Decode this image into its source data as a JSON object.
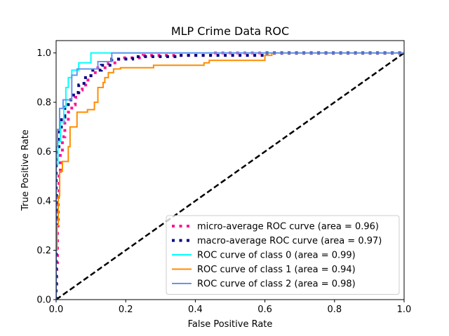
{
  "chart_data": {
    "type": "line",
    "title": "MLP Crime Data ROC",
    "xlabel": "False Positive Rate",
    "ylabel": "True Positive Rate",
    "xlim": [
      0.0,
      1.0
    ],
    "ylim": [
      0.0,
      1.05
    ],
    "xticks": [
      0.0,
      0.2,
      0.4,
      0.6,
      0.8,
      1.0
    ],
    "yticks": [
      0.0,
      0.2,
      0.4,
      0.6,
      0.8,
      1.0
    ],
    "xtick_labels": [
      "0.0",
      "0.2",
      "0.4",
      "0.6",
      "0.8",
      "1.0"
    ],
    "ytick_labels": [
      "0.0",
      "0.2",
      "0.4",
      "0.6",
      "0.8",
      "1.0"
    ],
    "grid": false,
    "legend_position": "bottom-right",
    "series": [
      {
        "name": "micro-average ROC curve (area = 0.96)",
        "color": "#ff1493",
        "style": "dotted",
        "x": [
          0.0,
          0.0,
          0.002,
          0.002,
          0.004,
          0.004,
          0.006,
          0.006,
          0.008,
          0.008,
          0.012,
          0.012,
          0.018,
          0.018,
          0.025,
          0.025,
          0.035,
          0.035,
          0.045,
          0.045,
          0.055,
          0.055,
          0.065,
          0.065,
          0.075,
          0.075,
          0.085,
          0.085,
          0.1,
          0.1,
          0.12,
          0.12,
          0.15,
          0.15,
          0.18,
          0.18,
          0.25,
          0.25,
          0.45,
          0.45,
          1.0
        ],
        "y": [
          0.0,
          0.05,
          0.05,
          0.15,
          0.15,
          0.3,
          0.3,
          0.42,
          0.42,
          0.52,
          0.52,
          0.6,
          0.6,
          0.66,
          0.66,
          0.72,
          0.72,
          0.76,
          0.76,
          0.79,
          0.79,
          0.82,
          0.82,
          0.85,
          0.85,
          0.87,
          0.87,
          0.89,
          0.89,
          0.92,
          0.92,
          0.94,
          0.94,
          0.96,
          0.96,
          0.98,
          0.98,
          0.99,
          0.99,
          1.0,
          1.0
        ]
      },
      {
        "name": "macro-average ROC curve (area = 0.97)",
        "color": "#000080",
        "style": "dotted",
        "x": [
          0.0,
          0.0,
          0.003,
          0.003,
          0.008,
          0.008,
          0.015,
          0.015,
          0.025,
          0.025,
          0.035,
          0.035,
          0.05,
          0.05,
          0.065,
          0.065,
          0.08,
          0.08,
          0.1,
          0.1,
          0.13,
          0.13,
          0.16,
          0.16,
          0.22,
          0.22,
          0.35,
          0.35,
          0.6,
          0.6,
          1.0
        ],
        "y": [
          0.0,
          0.55,
          0.55,
          0.62,
          0.62,
          0.69,
          0.69,
          0.74,
          0.74,
          0.78,
          0.78,
          0.81,
          0.81,
          0.84,
          0.84,
          0.87,
          0.87,
          0.9,
          0.9,
          0.93,
          0.93,
          0.95,
          0.95,
          0.975,
          0.975,
          0.985,
          0.985,
          0.99,
          0.99,
          1.0,
          1.0
        ]
      },
      {
        "name": "ROC curve of class 0 (area = 0.99)",
        "color": "#00ffff",
        "style": "solid",
        "x": [
          0.0,
          0.0,
          0.005,
          0.005,
          0.012,
          0.012,
          0.022,
          0.022,
          0.028,
          0.028,
          0.035,
          0.035,
          0.045,
          0.045,
          0.065,
          0.065,
          0.1,
          0.1,
          1.0
        ],
        "y": [
          0.0,
          0.55,
          0.55,
          0.64,
          0.64,
          0.72,
          0.72,
          0.78,
          0.78,
          0.86,
          0.86,
          0.9,
          0.9,
          0.93,
          0.93,
          0.96,
          0.96,
          1.0,
          1.0
        ]
      },
      {
        "name": "ROC curve of class 1 (area = 0.94)",
        "color": "#ff8c00",
        "style": "solid",
        "x": [
          0.0,
          0.0,
          0.003,
          0.003,
          0.006,
          0.006,
          0.01,
          0.01,
          0.018,
          0.018,
          0.035,
          0.035,
          0.04,
          0.04,
          0.06,
          0.06,
          0.09,
          0.09,
          0.11,
          0.11,
          0.12,
          0.12,
          0.135,
          0.135,
          0.14,
          0.14,
          0.15,
          0.15,
          0.165,
          0.165,
          0.185,
          0.185,
          0.28,
          0.28,
          0.425,
          0.425,
          0.44,
          0.44,
          0.6,
          0.6,
          0.62,
          0.62,
          1.0
        ],
        "y": [
          0.0,
          0.2,
          0.2,
          0.3,
          0.3,
          0.42,
          0.42,
          0.52,
          0.52,
          0.56,
          0.56,
          0.62,
          0.62,
          0.7,
          0.7,
          0.76,
          0.76,
          0.77,
          0.77,
          0.8,
          0.8,
          0.86,
          0.86,
          0.88,
          0.88,
          0.9,
          0.9,
          0.92,
          0.92,
          0.935,
          0.935,
          0.94,
          0.94,
          0.95,
          0.95,
          0.96,
          0.96,
          0.97,
          0.97,
          0.99,
          0.99,
          1.0,
          1.0
        ]
      },
      {
        "name": "ROC curve of class 2 (area = 0.98)",
        "color": "#6495ed",
        "style": "solid",
        "x": [
          0.0,
          0.0,
          0.004,
          0.004,
          0.01,
          0.01,
          0.02,
          0.02,
          0.045,
          0.045,
          0.06,
          0.06,
          0.12,
          0.12,
          0.16,
          0.16,
          1.0
        ],
        "y": [
          0.0,
          0.62,
          0.62,
          0.69,
          0.69,
          0.775,
          0.775,
          0.81,
          0.81,
          0.91,
          0.91,
          0.935,
          0.935,
          0.965,
          0.965,
          1.0,
          1.0
        ]
      },
      {
        "name": "",
        "color": "#000000",
        "style": "dashed",
        "x": [
          0.0,
          1.0
        ],
        "y": [
          0.0,
          1.0
        ]
      }
    ]
  }
}
